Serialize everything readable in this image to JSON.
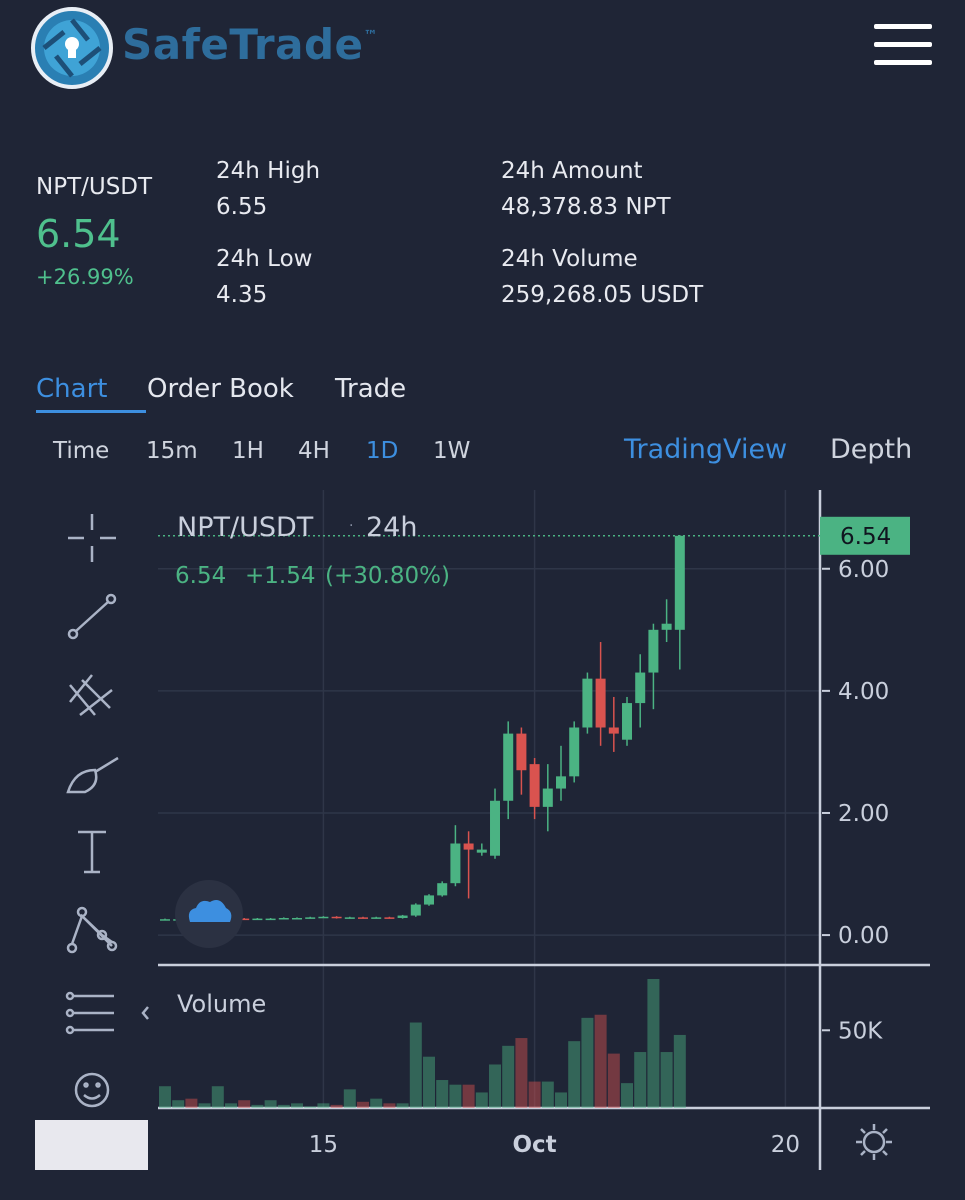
{
  "header": {
    "brand": "SafeTrade",
    "trademark": "™"
  },
  "ticker": {
    "pair": "NPT/USDT",
    "price": "6.54",
    "change": "+26.99%",
    "stats": [
      {
        "label": "24h High",
        "value": "6.55"
      },
      {
        "label": "24h Low",
        "value": "4.35"
      },
      {
        "label": "24h Amount",
        "value": "48,378.83 NPT"
      },
      {
        "label": "24h Volume",
        "value": "259,268.05 USDT"
      }
    ]
  },
  "tabs": [
    "Chart",
    "Order Book",
    "Trade"
  ],
  "intervals": [
    "Time",
    "15m",
    "1H",
    "4H",
    "1D",
    "1W"
  ],
  "views": [
    "TradingView",
    "Depth"
  ],
  "chart_data": {
    "type": "candlestick",
    "title": "NPT/USDT",
    "period": "24h",
    "legend": [
      "6.54",
      "+1.54",
      "(+30.80%)"
    ],
    "up_color": "#4bb383",
    "down_color": "#d9534f",
    "last": 6.54,
    "open": [
      0.25,
      0.26,
      0.26,
      0.25,
      0.26,
      0.26,
      0.27,
      0.26,
      0.27,
      0.27,
      0.28,
      0.28,
      0.29,
      0.3,
      0.28,
      0.29,
      0.28,
      0.29,
      0.28,
      0.32,
      0.5,
      0.65,
      0.85,
      1.5,
      1.35,
      1.3,
      2.2,
      3.3,
      2.8,
      2.1,
      2.4,
      2.6,
      3.4,
      4.2,
      3.4,
      3.2,
      3.8,
      4.3,
      5.0,
      5.0
    ],
    "high": [
      0.27,
      0.27,
      0.27,
      0.27,
      0.27,
      0.28,
      0.28,
      0.28,
      0.28,
      0.29,
      0.29,
      0.3,
      0.31,
      0.31,
      0.3,
      0.3,
      0.3,
      0.3,
      0.33,
      0.52,
      0.67,
      0.88,
      1.8,
      1.7,
      1.5,
      2.4,
      3.5,
      3.4,
      2.9,
      2.8,
      3.1,
      3.5,
      4.3,
      4.8,
      3.9,
      3.9,
      4.6,
      5.1,
      5.5,
      6.55
    ],
    "low": [
      0.24,
      0.25,
      0.24,
      0.24,
      0.25,
      0.25,
      0.25,
      0.25,
      0.26,
      0.26,
      0.27,
      0.27,
      0.28,
      0.27,
      0.27,
      0.27,
      0.27,
      0.27,
      0.27,
      0.3,
      0.48,
      0.63,
      0.8,
      0.6,
      1.3,
      1.25,
      1.9,
      2.3,
      1.9,
      1.7,
      2.2,
      2.5,
      3.3,
      3.1,
      3.0,
      3.1,
      3.4,
      3.7,
      4.8,
      4.35
    ],
    "close": [
      0.26,
      0.26,
      0.25,
      0.26,
      0.26,
      0.27,
      0.26,
      0.27,
      0.27,
      0.28,
      0.28,
      0.29,
      0.3,
      0.28,
      0.29,
      0.28,
      0.29,
      0.28,
      0.32,
      0.5,
      0.65,
      0.85,
      1.5,
      1.4,
      1.4,
      2.2,
      3.3,
      2.7,
      2.1,
      2.4,
      2.6,
      3.4,
      4.2,
      3.4,
      3.3,
      3.8,
      4.3,
      5.0,
      5.1,
      6.54
    ],
    "xlim": [
      -0.53,
      49.62
    ],
    "xticks": [
      {
        "value": 12,
        "label": "15"
      },
      {
        "value": 28,
        "label": "Oct"
      },
      {
        "value": 47,
        "label": "20"
      }
    ],
    "ylim": [
      -0.49,
      7.29
    ],
    "yticks": [
      {
        "value": 0,
        "label": "0.00"
      },
      {
        "value": 2,
        "label": "2.00"
      },
      {
        "value": 4,
        "label": "4.00"
      },
      {
        "value": 6,
        "label": "6.00"
      }
    ],
    "grid": true,
    "volume": {
      "title": "Volume",
      "values": [
        14000,
        5000,
        6000,
        3000,
        14000,
        3000,
        5000,
        2000,
        5000,
        2000,
        3000,
        1000,
        3000,
        2000,
        12000,
        4000,
        6000,
        3000,
        3000,
        55000,
        33000,
        18000,
        15000,
        15000,
        10000,
        28000,
        40000,
        45000,
        17000,
        17000,
        10000,
        43000,
        58000,
        60000,
        35000,
        16000,
        36000,
        83000,
        36000,
        47000
      ],
      "ylim": [
        0,
        92000
      ],
      "yticks": [
        {
          "value": 50000,
          "label": "50K"
        }
      ]
    }
  }
}
